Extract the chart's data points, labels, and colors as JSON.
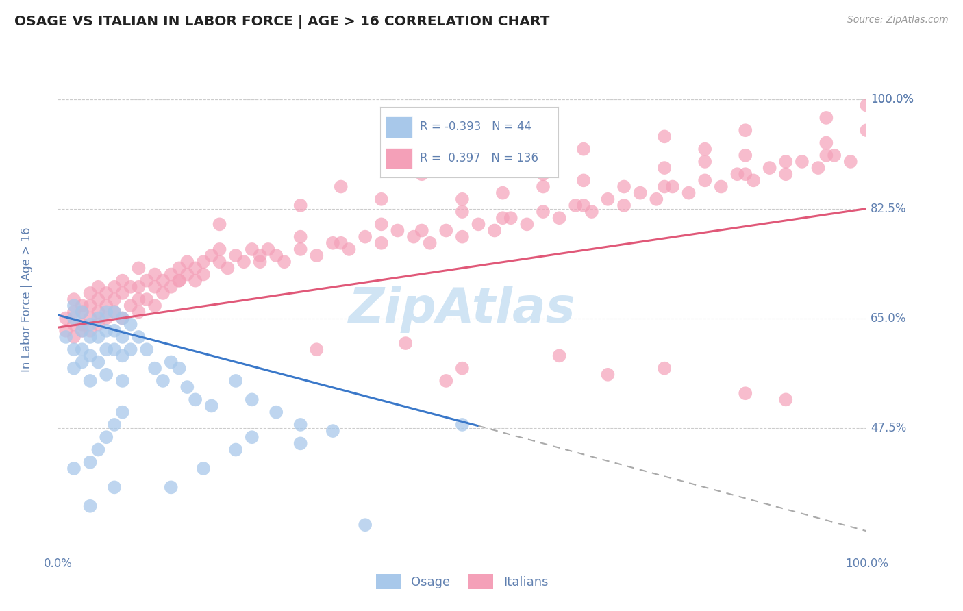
{
  "title": "OSAGE VS ITALIAN IN LABOR FORCE | AGE > 16 CORRELATION CHART",
  "source_text": "Source: ZipAtlas.com",
  "ylabel": "In Labor Force | Age > 16",
  "xlim": [
    0.0,
    1.0
  ],
  "ylim": [
    0.28,
    1.08
  ],
  "yticks": [
    0.475,
    0.65,
    0.825,
    1.0
  ],
  "ytick_labels": [
    "47.5%",
    "65.0%",
    "82.5%",
    "100.0%"
  ],
  "legend_R1": "-0.393",
  "legend_N1": "44",
  "legend_R2": "0.397",
  "legend_N2": "136",
  "osage_color": "#a8c8ea",
  "italian_color": "#f4a0b8",
  "osage_line_color": "#3a78c9",
  "italian_line_color": "#e05878",
  "watermark": "ZipAtlas",
  "watermark_color": "#d0e4f4",
  "background_color": "#ffffff",
  "grid_color": "#cccccc",
  "title_color": "#333333",
  "axis_label_color": "#6080b0",
  "tick_label_color": "#6080b0",
  "osage_scatter": {
    "x": [
      0.01,
      0.02,
      0.02,
      0.02,
      0.02,
      0.03,
      0.03,
      0.03,
      0.03,
      0.04,
      0.04,
      0.04,
      0.04,
      0.05,
      0.05,
      0.05,
      0.06,
      0.06,
      0.06,
      0.06,
      0.07,
      0.07,
      0.07,
      0.08,
      0.08,
      0.08,
      0.08,
      0.09,
      0.09,
      0.1,
      0.11,
      0.12,
      0.13,
      0.14,
      0.15,
      0.16,
      0.17,
      0.19,
      0.22,
      0.24,
      0.27,
      0.3,
      0.34,
      0.5
    ],
    "y": [
      0.62,
      0.65,
      0.67,
      0.6,
      0.57,
      0.66,
      0.63,
      0.6,
      0.58,
      0.64,
      0.62,
      0.59,
      0.55,
      0.65,
      0.62,
      0.58,
      0.66,
      0.63,
      0.6,
      0.56,
      0.66,
      0.63,
      0.6,
      0.65,
      0.62,
      0.59,
      0.55,
      0.64,
      0.6,
      0.62,
      0.6,
      0.57,
      0.55,
      0.58,
      0.57,
      0.54,
      0.52,
      0.51,
      0.55,
      0.52,
      0.5,
      0.48,
      0.47,
      0.48
    ]
  },
  "osage_extra": {
    "x": [
      0.02,
      0.04,
      0.05,
      0.06,
      0.07,
      0.08,
      0.14,
      0.18,
      0.22,
      0.24,
      0.3,
      0.04,
      0.07,
      0.38
    ],
    "y": [
      0.41,
      0.42,
      0.44,
      0.46,
      0.48,
      0.5,
      0.38,
      0.41,
      0.44,
      0.46,
      0.45,
      0.35,
      0.38,
      0.32
    ]
  },
  "italian_scatter": {
    "x": [
      0.01,
      0.01,
      0.02,
      0.02,
      0.02,
      0.02,
      0.03,
      0.03,
      0.03,
      0.03,
      0.04,
      0.04,
      0.04,
      0.04,
      0.05,
      0.05,
      0.05,
      0.05,
      0.06,
      0.06,
      0.06,
      0.07,
      0.07,
      0.07,
      0.08,
      0.08,
      0.08,
      0.09,
      0.09,
      0.1,
      0.1,
      0.1,
      0.11,
      0.11,
      0.12,
      0.12,
      0.12,
      0.13,
      0.13,
      0.14,
      0.14,
      0.15,
      0.15,
      0.16,
      0.16,
      0.17,
      0.17,
      0.18,
      0.18,
      0.19,
      0.2,
      0.21,
      0.22,
      0.23,
      0.24,
      0.25,
      0.26,
      0.27,
      0.28,
      0.3,
      0.32,
      0.34,
      0.36,
      0.38,
      0.4,
      0.42,
      0.44,
      0.46,
      0.48,
      0.5,
      0.52,
      0.54,
      0.56,
      0.58,
      0.6,
      0.62,
      0.64,
      0.66,
      0.68,
      0.7,
      0.72,
      0.74,
      0.76,
      0.78,
      0.8,
      0.82,
      0.84,
      0.86,
      0.88,
      0.9,
      0.92,
      0.94,
      0.96,
      0.98,
      1.0,
      0.15,
      0.25,
      0.35,
      0.45,
      0.55,
      0.65,
      0.75,
      0.85,
      0.95,
      0.2,
      0.4,
      0.6,
      0.8,
      1.0,
      0.3,
      0.5,
      0.7,
      0.9,
      0.1,
      0.2,
      0.3,
      0.4,
      0.5,
      0.55,
      0.65,
      0.75,
      0.85,
      0.95,
      0.45,
      0.55,
      0.65,
      0.75,
      0.85,
      0.95,
      0.35,
      0.6,
      0.8
    ],
    "y": [
      0.63,
      0.65,
      0.64,
      0.66,
      0.68,
      0.62,
      0.64,
      0.66,
      0.67,
      0.63,
      0.65,
      0.67,
      0.69,
      0.63,
      0.66,
      0.68,
      0.7,
      0.64,
      0.67,
      0.69,
      0.65,
      0.68,
      0.7,
      0.66,
      0.69,
      0.71,
      0.65,
      0.7,
      0.67,
      0.68,
      0.7,
      0.66,
      0.71,
      0.68,
      0.7,
      0.72,
      0.67,
      0.71,
      0.69,
      0.72,
      0.7,
      0.73,
      0.71,
      0.74,
      0.72,
      0.73,
      0.71,
      0.74,
      0.72,
      0.75,
      0.74,
      0.73,
      0.75,
      0.74,
      0.76,
      0.75,
      0.76,
      0.75,
      0.74,
      0.76,
      0.75,
      0.77,
      0.76,
      0.78,
      0.77,
      0.79,
      0.78,
      0.77,
      0.79,
      0.78,
      0.8,
      0.79,
      0.81,
      0.8,
      0.82,
      0.81,
      0.83,
      0.82,
      0.84,
      0.83,
      0.85,
      0.84,
      0.86,
      0.85,
      0.87,
      0.86,
      0.88,
      0.87,
      0.89,
      0.88,
      0.9,
      0.89,
      0.91,
      0.9,
      0.99,
      0.71,
      0.74,
      0.77,
      0.79,
      0.81,
      0.83,
      0.86,
      0.88,
      0.91,
      0.8,
      0.84,
      0.86,
      0.9,
      0.95,
      0.83,
      0.84,
      0.86,
      0.9,
      0.73,
      0.76,
      0.78,
      0.8,
      0.82,
      0.85,
      0.87,
      0.89,
      0.91,
      0.93,
      0.88,
      0.9,
      0.92,
      0.94,
      0.95,
      0.97,
      0.86,
      0.88,
      0.92
    ]
  },
  "italian_outliers": {
    "x": [
      0.32,
      0.43,
      0.5,
      0.62,
      0.48,
      0.68,
      0.75,
      0.85,
      0.9
    ],
    "y": [
      0.6,
      0.61,
      0.57,
      0.59,
      0.55,
      0.56,
      0.57,
      0.53,
      0.52
    ]
  },
  "osage_trend": {
    "x_start": 0.0,
    "x_end": 0.52,
    "y_start": 0.655,
    "y_end": 0.478
  },
  "osage_trend_dashed": {
    "x_start": 0.52,
    "x_end": 1.0,
    "y_start": 0.478,
    "y_end": 0.31
  },
  "italian_trend": {
    "x_start": 0.0,
    "x_end": 1.0,
    "y_start": 0.635,
    "y_end": 0.825
  }
}
